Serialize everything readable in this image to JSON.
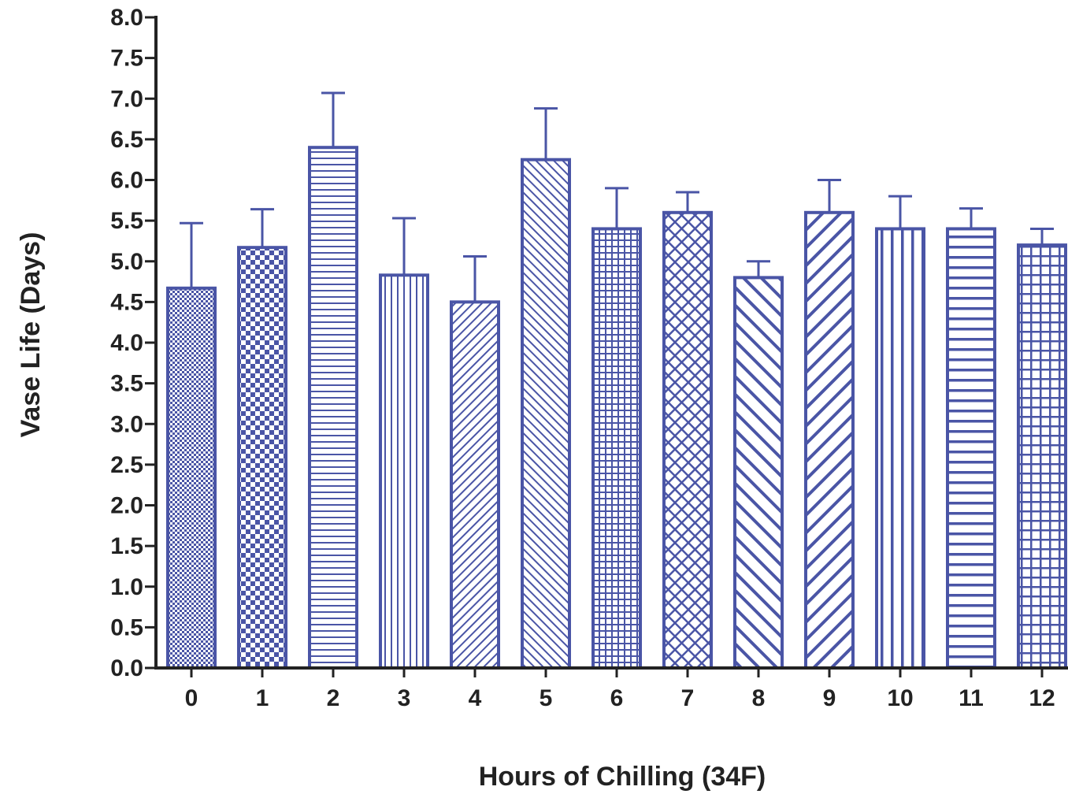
{
  "chart_data": {
    "type": "bar",
    "title": "",
    "xlabel": "Hours of Chilling (34F)",
    "ylabel": "Vase Life (Days)",
    "ylim": [
      0,
      8
    ],
    "yticks": [
      "0.0",
      "0.5",
      "1.0",
      "1.5",
      "2.0",
      "2.5",
      "3.0",
      "3.5",
      "4.0",
      "4.5",
      "5.0",
      "5.5",
      "6.0",
      "6.5",
      "7.0",
      "7.5",
      "8.0"
    ],
    "categories": [
      "0",
      "1",
      "2",
      "3",
      "4",
      "5",
      "6",
      "7",
      "8",
      "9",
      "10",
      "11",
      "12"
    ],
    "values": [
      4.67,
      5.17,
      6.4,
      4.83,
      4.5,
      6.25,
      5.4,
      5.6,
      4.8,
      5.6,
      5.4,
      5.4,
      5.2
    ],
    "error": [
      0.8,
      0.47,
      0.67,
      0.7,
      0.56,
      0.63,
      0.5,
      0.25,
      0.2,
      0.4,
      0.4,
      0.25,
      0.2
    ],
    "error_bars": "upper",
    "grid": false,
    "legend": "none",
    "fill_patterns": [
      "fine-checker",
      "checker",
      "horizontal-lines",
      "vertical-lines",
      "diagonal-up-fine",
      "diagonal-down-fine",
      "grid-fine",
      "diagonal-crosshatch",
      "diagonal-down-wide",
      "diagonal-up-wide",
      "vertical-lines-wide",
      "horizontal-lines-wide",
      "grid-wide"
    ],
    "colors": {
      "bar": "#4a55a6",
      "axis": "#222222",
      "text": "#222222"
    }
  }
}
